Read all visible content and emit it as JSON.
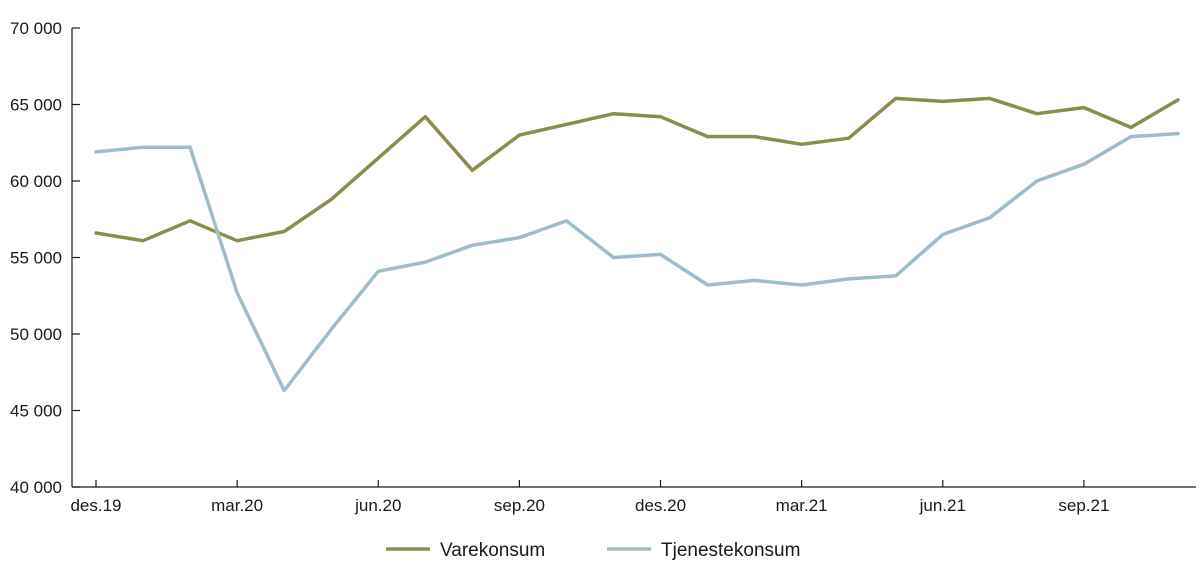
{
  "chart_data": {
    "type": "line",
    "x": [
      "des.19",
      "jan.20",
      "feb.20",
      "mar.20",
      "apr.20",
      "mai.20",
      "jun.20",
      "jul.20",
      "aug.20",
      "sep.20",
      "okt.20",
      "nov.20",
      "des.20",
      "jan.21",
      "feb.21",
      "mar.21",
      "apr.21",
      "mai.21",
      "jun.21",
      "jul.21",
      "aug.21",
      "sep.21",
      "okt.21",
      "nov.21"
    ],
    "x_tick_labels": [
      "des.19",
      "mar.20",
      "jun.20",
      "sep.20",
      "des.20",
      "mar.21",
      "jun.21",
      "sep.21"
    ],
    "x_tick_indices": [
      0,
      3,
      6,
      9,
      12,
      15,
      18,
      21
    ],
    "series": [
      {
        "name": "Varekonsum",
        "color": "#8c8c4c",
        "values": [
          56600,
          56100,
          57400,
          56100,
          56700,
          58800,
          61500,
          64200,
          60700,
          63000,
          63700,
          64400,
          64200,
          62900,
          62900,
          62400,
          62800,
          65400,
          65200,
          65400,
          64400,
          64800,
          63500,
          65300
        ]
      },
      {
        "name": "Tjenestekonsum",
        "color": "#9fbccb",
        "values": [
          61900,
          62200,
          62200,
          52700,
          46300,
          50300,
          54100,
          54700,
          55800,
          56300,
          57400,
          55000,
          55200,
          53200,
          53500,
          53200,
          53600,
          53800,
          56500,
          57600,
          60000,
          61100,
          62900,
          63100
        ]
      }
    ],
    "y_ticks": [
      "40 000",
      "45 000",
      "50 000",
      "55 000",
      "60 000",
      "65 000",
      "70 000"
    ],
    "y_tick_values": [
      40000,
      45000,
      50000,
      55000,
      60000,
      65000,
      70000
    ],
    "ylim": [
      40000,
      70000
    ],
    "legend_position": "bottom-center",
    "grid": false
  }
}
